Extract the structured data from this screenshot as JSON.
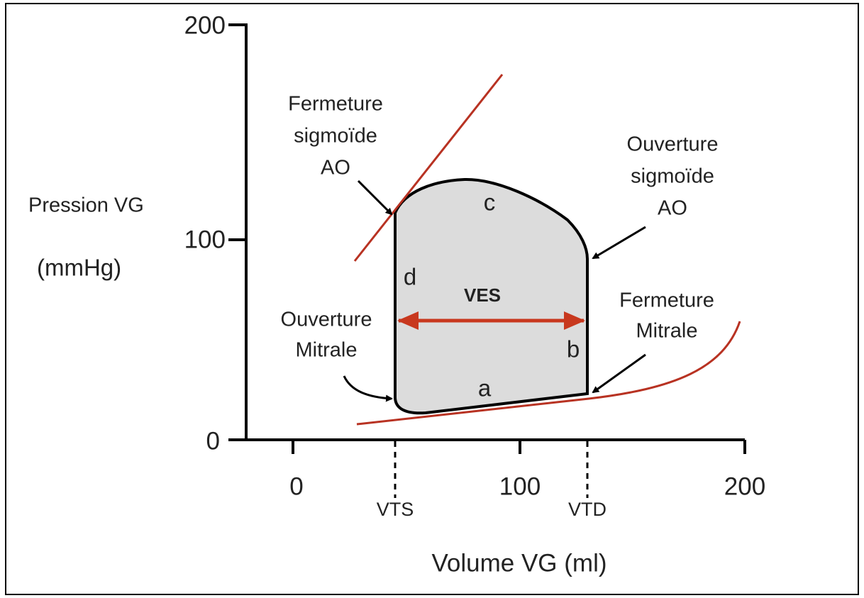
{
  "axes": {
    "y_title": [
      "Pression VG",
      "(mmHg)"
    ],
    "x_title": "Volume VG (ml)",
    "y_ticks": [
      "200",
      "100",
      "0"
    ],
    "x_ticks": [
      "0",
      "100",
      "200"
    ]
  },
  "labels": {
    "closing_aortic": [
      "Fermeture",
      "sigmoïde",
      "AO"
    ],
    "opening_aortic": [
      "Ouverture",
      "sigmoïde",
      "AO"
    ],
    "opening_mitral": [
      "Ouverture",
      "Mitrale"
    ],
    "closing_mitral": [
      "Fermeture",
      "Mitrale"
    ],
    "phases": [
      "a",
      "b",
      "c",
      "d"
    ],
    "stroke_volume": "VES",
    "esv": "VTS",
    "edv": "VTD"
  }
}
